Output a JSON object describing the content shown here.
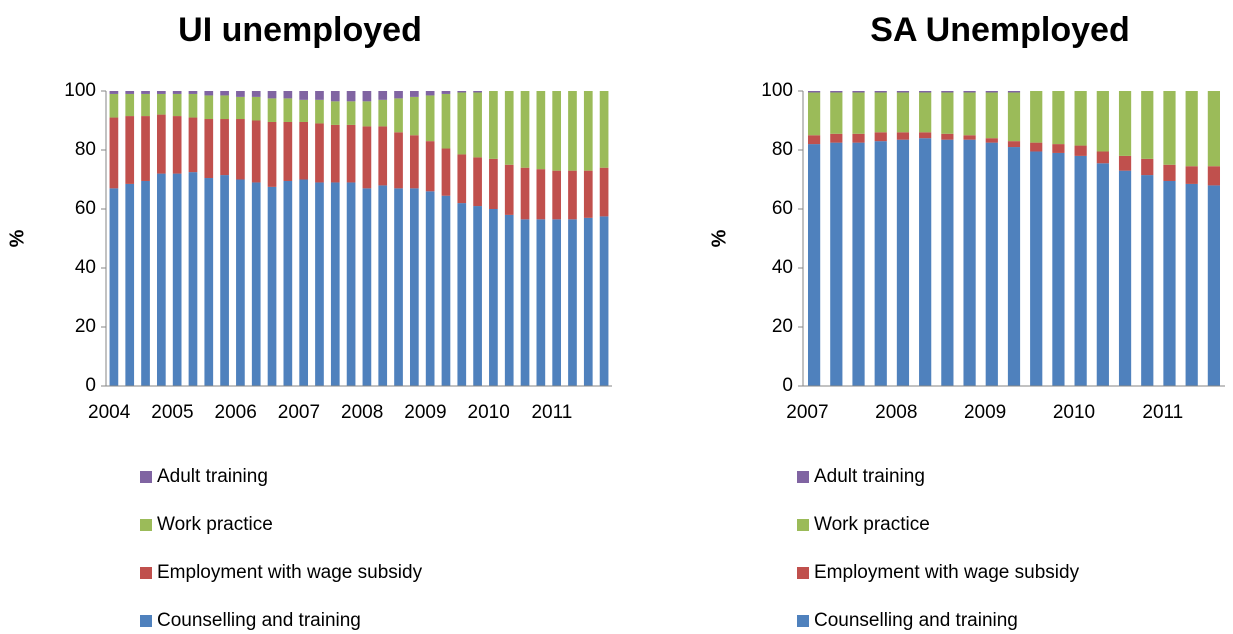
{
  "chart_data": [
    {
      "type": "stacked_bar",
      "title": "UI unemployed",
      "y_label": "%",
      "categories": [
        "2004",
        null,
        null,
        null,
        "2005",
        null,
        null,
        null,
        "2006",
        null,
        null,
        null,
        "2007",
        null,
        null,
        null,
        "2008",
        null,
        null,
        null,
        "2009",
        null,
        null,
        null,
        "2010",
        null,
        null,
        null,
        "2011",
        null,
        null,
        null
      ],
      "ylim": [
        0,
        100
      ],
      "yticks": [
        0,
        20,
        40,
        60,
        80,
        100
      ],
      "series": [
        {
          "name": "Counselling and training",
          "color": "#4f81bd",
          "values": [
            67,
            68.5,
            69.5,
            72,
            72,
            72.5,
            70.5,
            71.5,
            70,
            69,
            67.5,
            69.5,
            70,
            69,
            69,
            69,
            67,
            68,
            67,
            67,
            66,
            64.5,
            62,
            61,
            60,
            58,
            56.5,
            56.5,
            56.5,
            56.5,
            57,
            57.5
          ]
        },
        {
          "name": "Employment with wage subsidy",
          "color": "#c0504d",
          "values": [
            24,
            23,
            22,
            20,
            19.5,
            18.5,
            20,
            19,
            20.5,
            21,
            22,
            20,
            19.5,
            20,
            19.5,
            19.5,
            21,
            20,
            19,
            18,
            17,
            16,
            16.5,
            16.5,
            17,
            17,
            17.5,
            17,
            16.5,
            16.5,
            16,
            16.5
          ]
        },
        {
          "name": "Work practice",
          "color": "#9bbb59",
          "values": [
            8,
            7.5,
            7.5,
            7,
            7.5,
            8,
            8,
            8,
            7.5,
            8,
            8,
            8,
            7.5,
            8,
            8,
            8,
            8.5,
            9,
            11.5,
            13,
            15.5,
            18.5,
            21,
            22,
            23,
            25,
            26,
            26.5,
            27,
            27,
            27,
            26
          ]
        },
        {
          "name": "Adult training",
          "color": "#8064a2",
          "values": [
            1,
            1,
            1,
            1,
            1,
            1,
            1.5,
            1.5,
            2,
            2,
            2.5,
            2.5,
            3,
            3,
            3.5,
            3.5,
            3.5,
            3,
            2.5,
            2,
            1.5,
            1,
            0.5,
            0.5,
            0,
            0,
            0,
            0,
            0,
            0,
            0,
            0
          ]
        }
      ]
    },
    {
      "type": "stacked_bar",
      "title": "SA Unemployed",
      "y_label": "%",
      "categories": [
        "2007",
        null,
        null,
        null,
        "2008",
        null,
        null,
        null,
        "2009",
        null,
        null,
        null,
        "2010",
        null,
        null,
        null,
        "2011",
        null,
        null
      ],
      "ylim": [
        0,
        100
      ],
      "yticks": [
        0,
        20,
        40,
        60,
        80,
        100
      ],
      "series": [
        {
          "name": "Counselling and training",
          "color": "#4f81bd",
          "values": [
            82,
            82.5,
            82.5,
            83,
            83.5,
            84,
            83.5,
            83.5,
            82.5,
            81,
            79.5,
            79,
            78,
            75.5,
            73,
            71.5,
            69.5,
            68.5,
            68
          ]
        },
        {
          "name": "Employment with wage subsidy",
          "color": "#c0504d",
          "values": [
            3,
            3,
            3,
            3,
            2.5,
            2,
            2,
            1.5,
            1.5,
            2,
            3,
            3,
            3.5,
            4,
            5,
            5.5,
            5.5,
            6,
            6.5
          ]
        },
        {
          "name": "Work practice",
          "color": "#9bbb59",
          "values": [
            14.5,
            14,
            14,
            13.5,
            13.5,
            13.5,
            14,
            14.5,
            15.5,
            16.5,
            17.5,
            18,
            18.5,
            20.5,
            22,
            23,
            25,
            25.5,
            25.5
          ]
        },
        {
          "name": "Adult training",
          "color": "#8064a2",
          "values": [
            0.5,
            0.5,
            0.5,
            0.5,
            0.5,
            0.5,
            0.5,
            0.5,
            0.5,
            0.5,
            0,
            0,
            0,
            0,
            0,
            0,
            0,
            0,
            0
          ]
        }
      ]
    }
  ]
}
